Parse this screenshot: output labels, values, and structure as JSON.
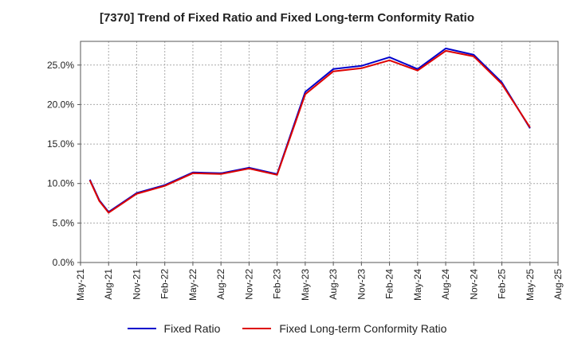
{
  "title": "[7370]  Trend of Fixed Ratio and Fixed Long-term Conformity Ratio",
  "colors": {
    "fixed_ratio": "#0000cc",
    "fixed_lt_conformity": "#dd0000",
    "grid": "#aaaaaa"
  },
  "chart_data": {
    "type": "line",
    "title": "[7370]  Trend of Fixed Ratio and Fixed Long-term Conformity Ratio",
    "xlabel": "",
    "ylabel": "",
    "ylim": [
      0,
      28
    ],
    "y_ticks": [
      "0.0%",
      "5.0%",
      "10.0%",
      "15.0%",
      "20.0%",
      "25.0%"
    ],
    "y_tick_values": [
      0,
      5,
      10,
      15,
      20,
      25
    ],
    "x_ticks": [
      "May-21",
      "Aug-21",
      "Nov-21",
      "Feb-22",
      "May-22",
      "Aug-22",
      "Nov-22",
      "Feb-23",
      "May-23",
      "Aug-23",
      "Nov-23",
      "Feb-24",
      "May-24",
      "Aug-24",
      "Nov-24",
      "Feb-25",
      "May-25",
      "Aug-25"
    ],
    "x": [
      "Jun-21",
      "Jul-21",
      "Aug-21",
      "Nov-21",
      "Feb-22",
      "May-22",
      "Aug-22",
      "Nov-22",
      "Feb-23",
      "May-23",
      "Aug-23",
      "Nov-23",
      "Feb-24",
      "May-24",
      "Aug-24",
      "Nov-24",
      "Feb-25",
      "May-25"
    ],
    "x_index": [
      1,
      2,
      3,
      6,
      9,
      12,
      15,
      18,
      21,
      24,
      27,
      30,
      33,
      36,
      39,
      42,
      45,
      48
    ],
    "x_index_range": [
      0,
      51
    ],
    "grid": true,
    "legend_position": "bottom",
    "series": [
      {
        "name": "Fixed Ratio",
        "values": [
          10.5,
          7.9,
          6.4,
          8.8,
          9.8,
          11.4,
          11.3,
          12.0,
          11.2,
          21.6,
          24.5,
          24.9,
          26.0,
          24.5,
          27.1,
          26.3,
          22.8,
          17.0
        ]
      },
      {
        "name": "Fixed Long-term Conformity Ratio",
        "values": [
          10.4,
          7.8,
          6.3,
          8.7,
          9.7,
          11.3,
          11.2,
          11.9,
          11.1,
          21.3,
          24.2,
          24.6,
          25.6,
          24.3,
          26.8,
          26.1,
          22.6,
          17.1
        ]
      }
    ]
  }
}
